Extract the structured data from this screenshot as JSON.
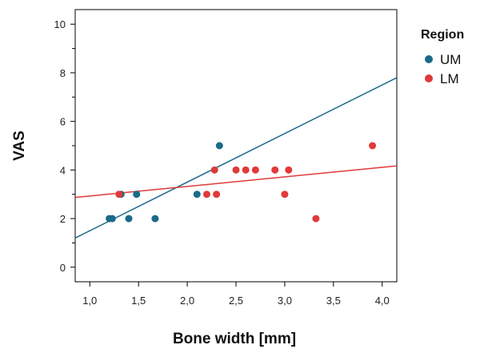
{
  "chart_data": {
    "type": "scatter",
    "title": "",
    "xlabel": "Bone width [mm]",
    "ylabel": "VAS",
    "xlim": [
      0.85,
      4.15
    ],
    "ylim": [
      -0.6,
      10.6
    ],
    "x_ticks": [
      1.0,
      1.5,
      2.0,
      2.5,
      3.0,
      3.5,
      4.0
    ],
    "x_tick_labels": [
      "1,0",
      "1,5",
      "2,0",
      "2,5",
      "3,0",
      "3,5",
      "4,0"
    ],
    "y_ticks": [
      0,
      2,
      4,
      6,
      8,
      10
    ],
    "y_tick_labels": [
      "0",
      "2",
      "4",
      "6",
      "8",
      "10"
    ],
    "y_minor_ticks": [
      1,
      3,
      5,
      7,
      9
    ],
    "grid": false,
    "legend": {
      "title": "Region",
      "placement": "right"
    },
    "series": [
      {
        "name": "UM",
        "color": "#1a6a8a",
        "points": [
          [
            1.2,
            2
          ],
          [
            1.23,
            2
          ],
          [
            1.32,
            3
          ],
          [
            1.4,
            2
          ],
          [
            1.48,
            3
          ],
          [
            1.67,
            2
          ],
          [
            2.1,
            3
          ],
          [
            2.33,
            5
          ]
        ],
        "fit_line": [
          [
            0.85,
            1.2
          ],
          [
            4.15,
            7.8
          ]
        ]
      },
      {
        "name": "LM",
        "color": "#e03a3a",
        "points": [
          [
            1.3,
            3
          ],
          [
            2.2,
            3
          ],
          [
            2.28,
            4
          ],
          [
            2.3,
            3
          ],
          [
            2.5,
            4
          ],
          [
            2.6,
            4
          ],
          [
            2.7,
            4
          ],
          [
            2.9,
            4
          ],
          [
            3.0,
            3
          ],
          [
            3.04,
            4
          ],
          [
            3.32,
            2
          ],
          [
            3.9,
            5
          ]
        ],
        "fit_line": [
          [
            0.85,
            2.87
          ],
          [
            4.15,
            4.17
          ]
        ]
      }
    ]
  }
}
